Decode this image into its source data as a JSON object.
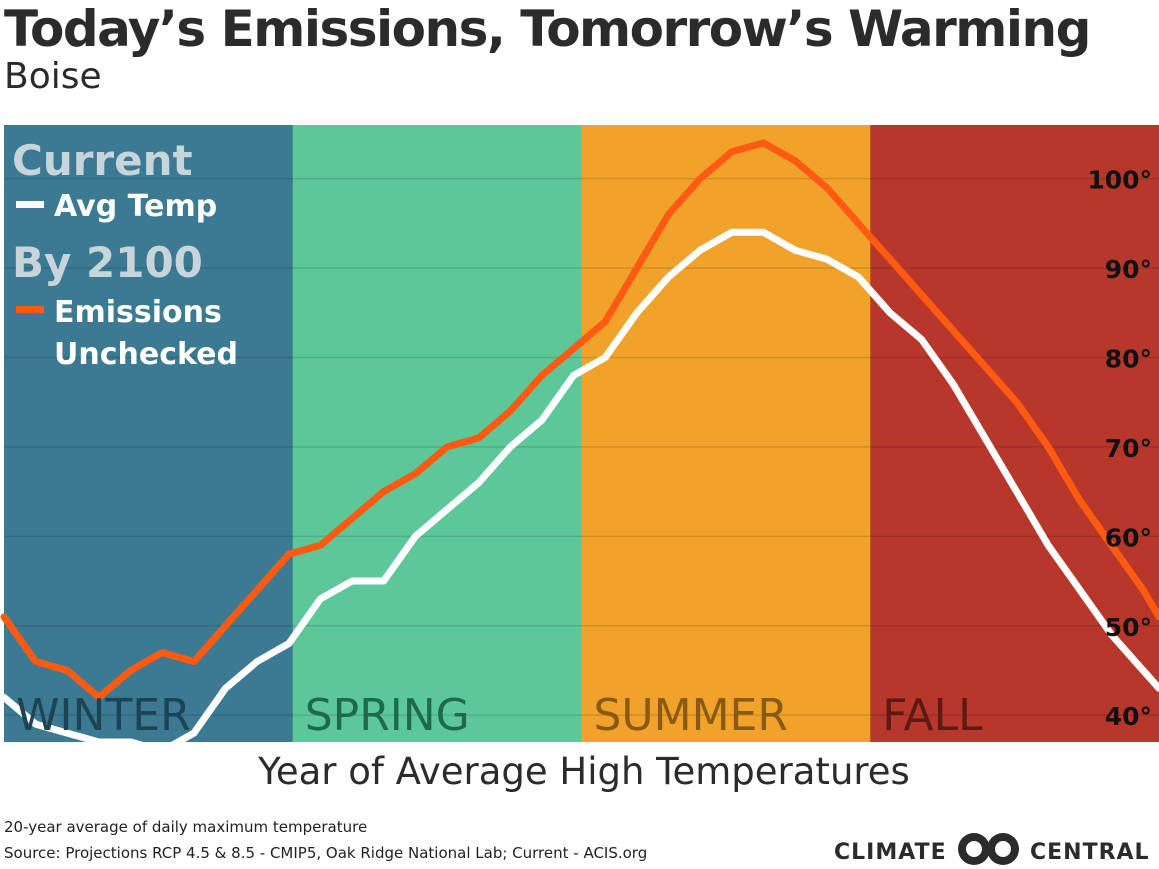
{
  "title": "Today’s Emissions, Tomorrow’s Warming",
  "subtitle": "Boise",
  "chart_data": {
    "type": "line",
    "title": "Today’s Emissions, Tomorrow’s Warming",
    "subtitle": "Boise",
    "xlabel": "Year of Average High Temperatures",
    "ylabel": "",
    "ylim": [
      37,
      106
    ],
    "y_ticks": [
      40,
      50,
      60,
      70,
      80,
      90,
      100
    ],
    "y_tick_labels": [
      "40°",
      "50°",
      "60°",
      "70°",
      "80°",
      "90°",
      "100°"
    ],
    "grid": true,
    "seasons": [
      {
        "label": "WINTER",
        "color": "#3b7a92",
        "label_color": "#1d4454"
      },
      {
        "label": "SPRING",
        "color": "#5cc89a",
        "label_color": "#1f6b49"
      },
      {
        "label": "SUMMER",
        "color": "#f1a22b",
        "label_color": "#8a5a12"
      },
      {
        "label": "FALL",
        "color": "#b7382a",
        "label_color": "#5e1a12"
      }
    ],
    "legend": {
      "current_heading": "Current",
      "current_label": "Avg Temp",
      "future_heading": "By 2100",
      "future_label_line1": "Emissions",
      "future_label_line2": "Unchecked",
      "placement": "top-left"
    },
    "x_days": [
      0,
      10,
      20,
      30,
      40,
      50,
      60,
      70,
      80,
      90,
      100,
      110,
      120,
      130,
      140,
      150,
      160,
      170,
      180,
      190,
      200,
      210,
      220,
      230,
      240,
      250,
      260,
      270,
      280,
      290,
      300,
      310,
      320,
      330,
      340,
      350,
      360,
      365
    ],
    "series": [
      {
        "name": "Avg Temp",
        "color": "#ffffff",
        "values": [
          42,
          39,
          38,
          37,
          37,
          36,
          38,
          43,
          46,
          48,
          53,
          55,
          55,
          60,
          63,
          66,
          70,
          73,
          78,
          80,
          85,
          89,
          92,
          94,
          94,
          92,
          91,
          89,
          85,
          82,
          77,
          71,
          65,
          59,
          54,
          49,
          45,
          43
        ]
      },
      {
        "name": "Emissions Unchecked",
        "color": "#ff5a12",
        "values": [
          51,
          46,
          45,
          42,
          45,
          47,
          46,
          50,
          54,
          58,
          59,
          62,
          65,
          67,
          70,
          71,
          74,
          78,
          81,
          84,
          90,
          96,
          100,
          103,
          104,
          102,
          99,
          95,
          91,
          87,
          83,
          79,
          75,
          70,
          64,
          59,
          54,
          51
        ]
      }
    ]
  },
  "footer": {
    "note": "20-year average of daily maximum temperature",
    "source": "Source: Projections RCP 4.5 & 8.5 - CMIP5, Oak Ridge National Lab; Current - ACIS.org"
  },
  "logo": {
    "left_word": "CLIMATE",
    "right_word": "CENTRAL"
  }
}
